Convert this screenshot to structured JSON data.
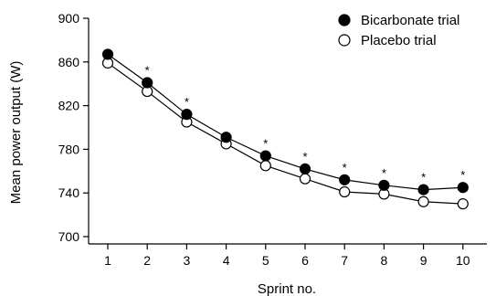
{
  "chart_data": {
    "type": "line",
    "xlabel": "Sprint no.",
    "ylabel": "Mean power output (W)",
    "x": [
      1,
      2,
      3,
      4,
      5,
      6,
      7,
      8,
      9,
      10
    ],
    "x_tick_labels": [
      "1",
      "2",
      "3",
      "4",
      "5",
      "6",
      "7",
      "8",
      "9",
      "10"
    ],
    "y_ticks": [
      700,
      740,
      780,
      820,
      860,
      900
    ],
    "y_tick_labels": [
      "700",
      "740",
      "780",
      "820",
      "860",
      "900"
    ],
    "xlim": [
      0.5,
      10.8
    ],
    "ylim": [
      700,
      900
    ],
    "grid": false,
    "legend_position": "top-right",
    "series": [
      {
        "name": "Bicarbonate trial",
        "marker": "filled-circle",
        "color": "#000000",
        "values": [
          867,
          841,
          812,
          791,
          774,
          762,
          752,
          747,
          743,
          745
        ]
      },
      {
        "name": "Placebo trial",
        "marker": "open-circle",
        "color": "#000000",
        "values": [
          859,
          833,
          805,
          785,
          765,
          753,
          741,
          739,
          732,
          730
        ]
      }
    ],
    "significance_marker": "*",
    "significant_x": [
      2,
      3,
      5,
      6,
      7,
      8,
      9,
      10
    ]
  }
}
